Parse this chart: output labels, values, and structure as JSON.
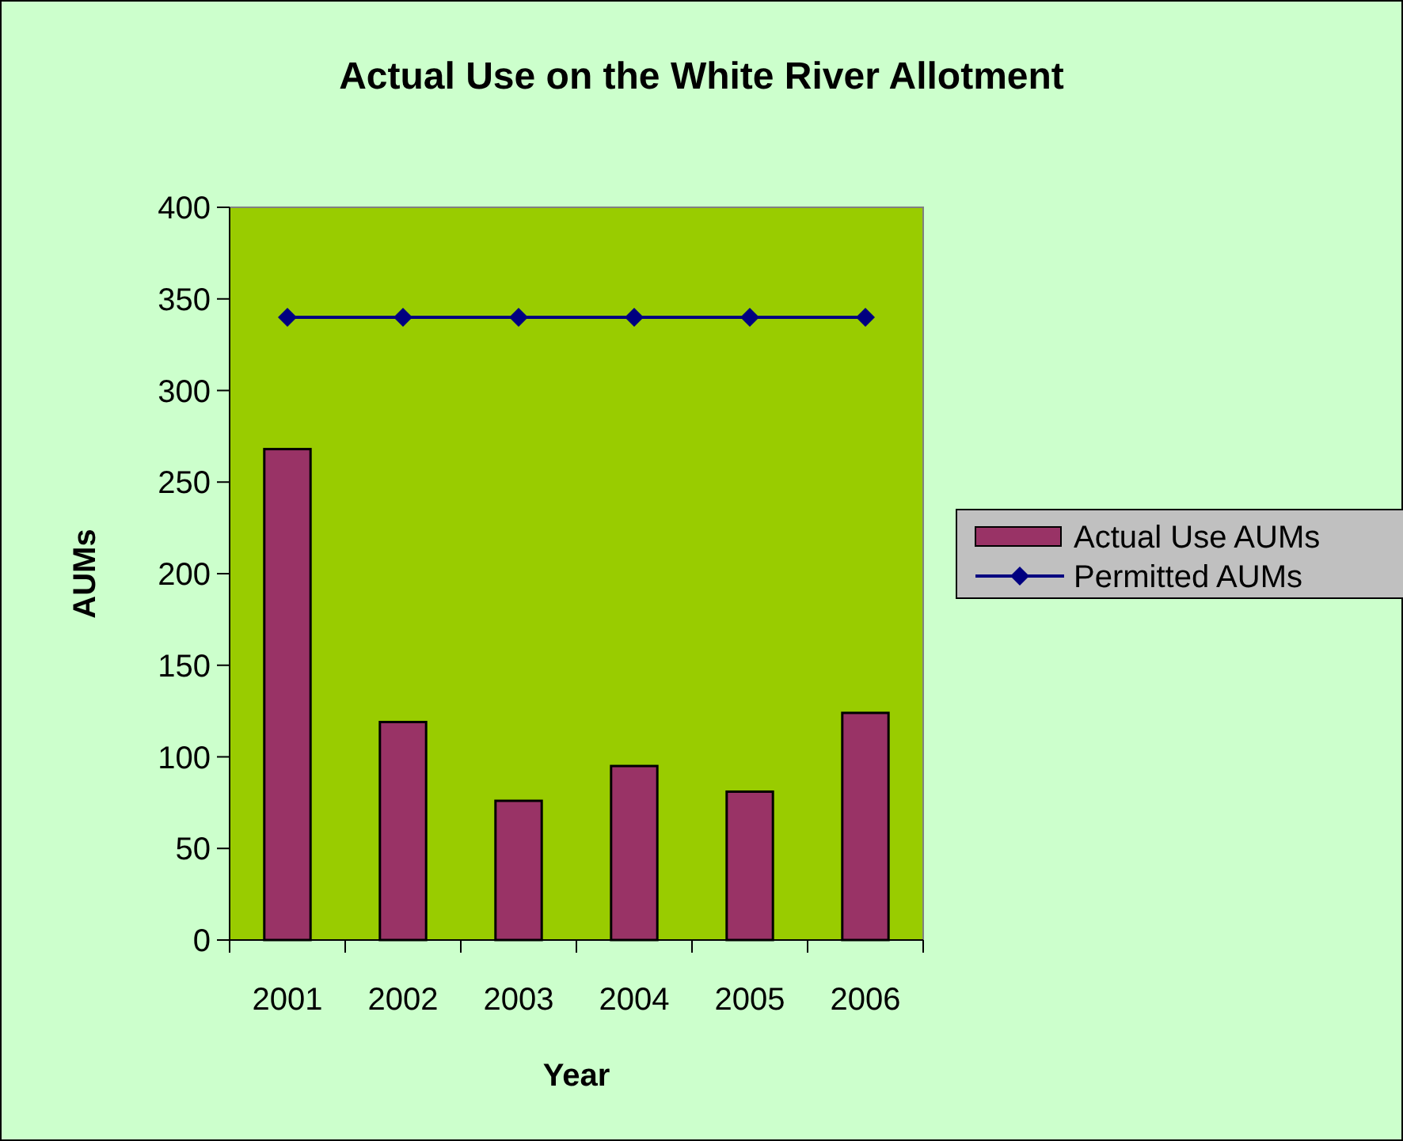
{
  "chart_data": {
    "type": "bar",
    "title": "Actual Use on the White River Allotment",
    "xlabel": "Year",
    "ylabel": "AUMs",
    "categories": [
      "2001",
      "2002",
      "2003",
      "2004",
      "2005",
      "2006"
    ],
    "series": [
      {
        "name": "Actual Use AUMs",
        "color": "#993366",
        "values": [
          268,
          119,
          76,
          95,
          81,
          124
        ]
      },
      {
        "name": "Permitted AUMs",
        "type": "line",
        "color": "#000080",
        "marker": "diamond",
        "values": [
          340,
          340,
          340,
          340,
          340,
          340
        ]
      }
    ],
    "ylim": [
      0,
      400
    ],
    "yticks": [
      0,
      50,
      100,
      150,
      200,
      250,
      300,
      350,
      400
    ],
    "grid": false,
    "legend": "right"
  }
}
